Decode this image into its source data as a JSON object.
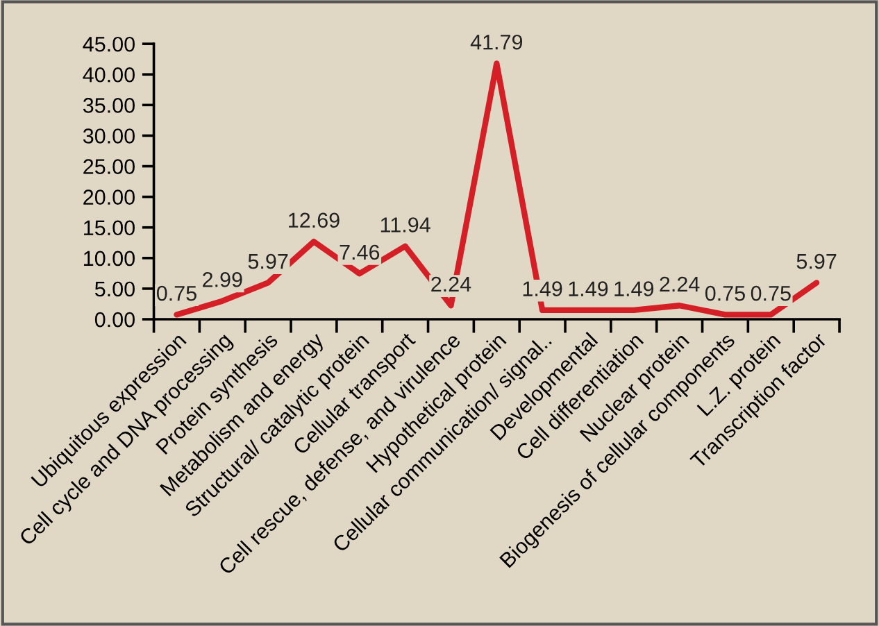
{
  "chart_data": {
    "type": "line",
    "categories": [
      "Ubiquitous expression",
      "Cell cycle and DNA processing",
      "Protein synthesis",
      "Metabolism and energy",
      "Structural/ catalytic protein",
      "Cellular transport",
      "Cell rescue, defense, and virulence",
      "Hypothetical protein",
      "Cellular communication/ signal..",
      "Developmental",
      "Cell differentiation",
      "Nuclear protein",
      "Biogenesis of cellular components",
      "L.Z. protein",
      "Transcription factor"
    ],
    "series": [
      {
        "color": "#d41f26",
        "values": [
          0.75,
          2.99,
          5.97,
          12.69,
          7.46,
          11.94,
          2.24,
          41.79,
          1.49,
          1.49,
          1.49,
          2.24,
          0.75,
          0.75,
          5.97
        ]
      }
    ],
    "ylim": [
      0,
      45
    ],
    "yticks": [
      {
        "value": 0,
        "label": "0.00"
      },
      {
        "value": 5,
        "label": "5.00"
      },
      {
        "value": 10,
        "label": "10.00"
      },
      {
        "value": 15,
        "label": "15.00"
      },
      {
        "value": 20,
        "label": "20.00"
      },
      {
        "value": 25,
        "label": "25.00"
      },
      {
        "value": 30,
        "label": "30.00"
      },
      {
        "value": 35,
        "label": "35.00"
      },
      {
        "value": 40,
        "label": "40.00"
      },
      {
        "value": 45,
        "label": "45.00"
      }
    ],
    "data_labels": true,
    "grid": false,
    "legend": false,
    "marker": "none",
    "line_style": "solid"
  }
}
